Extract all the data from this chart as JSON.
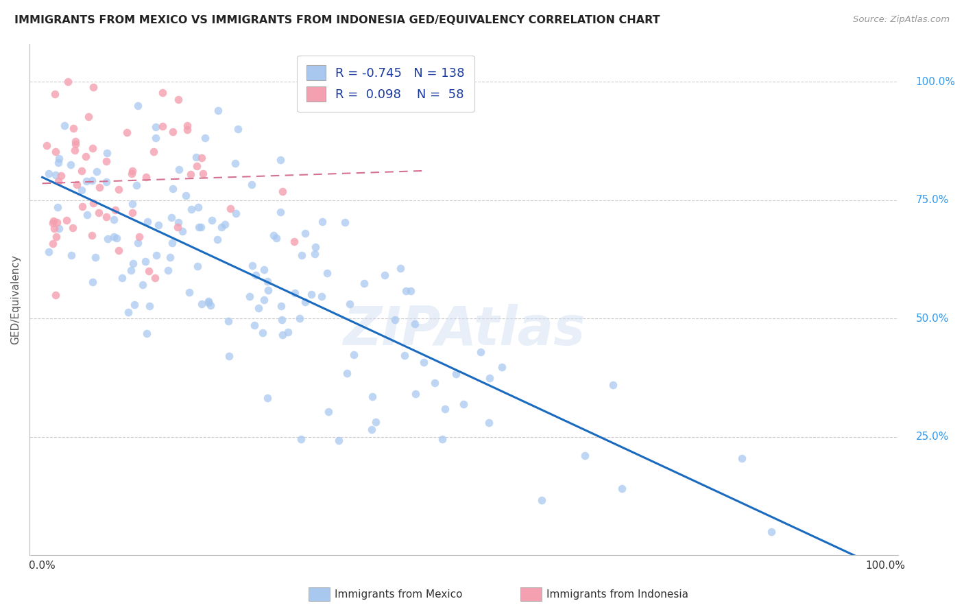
{
  "title": "IMMIGRANTS FROM MEXICO VS IMMIGRANTS FROM INDONESIA GED/EQUIVALENCY CORRELATION CHART",
  "source": "Source: ZipAtlas.com",
  "ylabel": "GED/Equivalency",
  "ytick_labels": [
    "25.0%",
    "50.0%",
    "75.0%",
    "100.0%"
  ],
  "ytick_vals": [
    0.25,
    0.5,
    0.75,
    1.0
  ],
  "mexico_color": "#a8c8f0",
  "mexico_edge_color": "#7aaad0",
  "indonesia_color": "#f4a0b0",
  "indonesia_edge_color": "#d47090",
  "mexico_line_color": "#1a6bbf",
  "indonesia_line_color": "#d47090",
  "R_mexico": -0.745,
  "N_mexico": 138,
  "R_indonesia": 0.098,
  "N_indonesia": 58,
  "background_color": "#ffffff",
  "grid_color": "#cccccc",
  "title_color": "#222222",
  "watermark": "ZIPAtlas",
  "legend_text_color": "#1a3a9f",
  "right_label_color": "#3399ee"
}
